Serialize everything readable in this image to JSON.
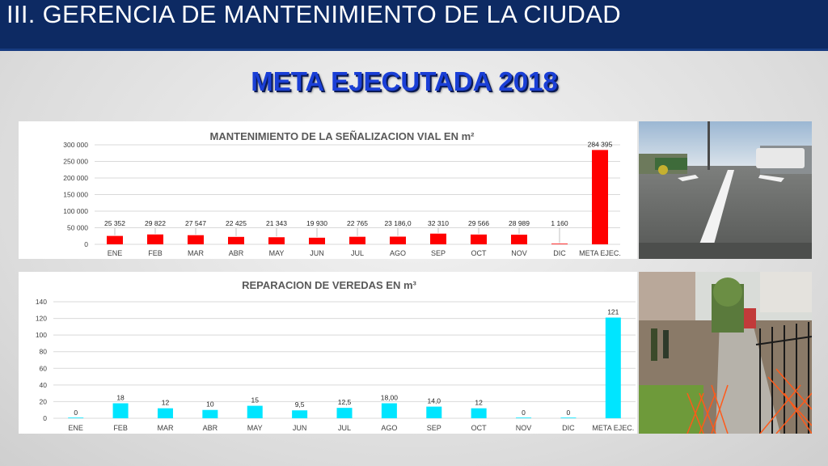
{
  "header": {
    "title": "III. GERENCIA DE MANTENIMIENTO DE LA CIUDAD"
  },
  "slide": {
    "title": "META EJECUTADA 2018"
  },
  "colors": {
    "header_bg": "#0d2a63",
    "chart1_bar": "#ff0000",
    "chart2_bar": "#00e5ff",
    "title_blue": "#1a3fd6",
    "chart_title": "#595959"
  },
  "photos": {
    "top": "road-marking-photo",
    "bottom": "sidewalk-repair-photo"
  },
  "chart_data": [
    {
      "type": "bar",
      "title": "MANTENIMIENTO DE LA SEÑALIZACION VIAL EN m²",
      "categories": [
        "ENE",
        "FEB",
        "MAR",
        "ABR",
        "MAY",
        "JUN",
        "JUL",
        "AGO",
        "SEP",
        "OCT",
        "NOV",
        "DIC",
        "META EJEC."
      ],
      "values": [
        25352,
        29822,
        27547,
        22425,
        21343,
        19930,
        22765,
        23186,
        32310,
        29566,
        28989,
        1160,
        284395
      ],
      "labels": [
        "25 352",
        "29 822",
        "27 547",
        "22 425",
        "21 343",
        "19 930",
        "22 765",
        "23 186,0",
        "32 310",
        "29 566",
        "28 989",
        "1 160",
        "284 395"
      ],
      "yticks": [
        "0",
        "50 000",
        "100 000",
        "150 000",
        "200 000",
        "250 000",
        "300 000"
      ],
      "ylim": [
        0,
        300000
      ],
      "grid": true,
      "legend": "none"
    },
    {
      "type": "bar",
      "title": "REPARACION DE VEREDAS EN m³",
      "categories": [
        "ENE",
        "FEB",
        "MAR",
        "ABR",
        "MAY",
        "JUN",
        "JUL",
        "AGO",
        "SEP",
        "OCT",
        "NOV",
        "DIC",
        "META EJEC."
      ],
      "values": [
        0,
        18,
        12,
        10,
        15,
        9.5,
        12.5,
        18,
        14,
        12,
        0,
        0,
        121
      ],
      "labels": [
        "0",
        "18",
        "12",
        "10",
        "15",
        "9,5",
        "12,5",
        "18,00",
        "14,0",
        "12",
        "0",
        "0",
        "121"
      ],
      "yticks": [
        "0",
        "20",
        "40",
        "60",
        "80",
        "100",
        "120",
        "140"
      ],
      "ylim": [
        0,
        140
      ],
      "grid": true,
      "legend": "none"
    }
  ]
}
